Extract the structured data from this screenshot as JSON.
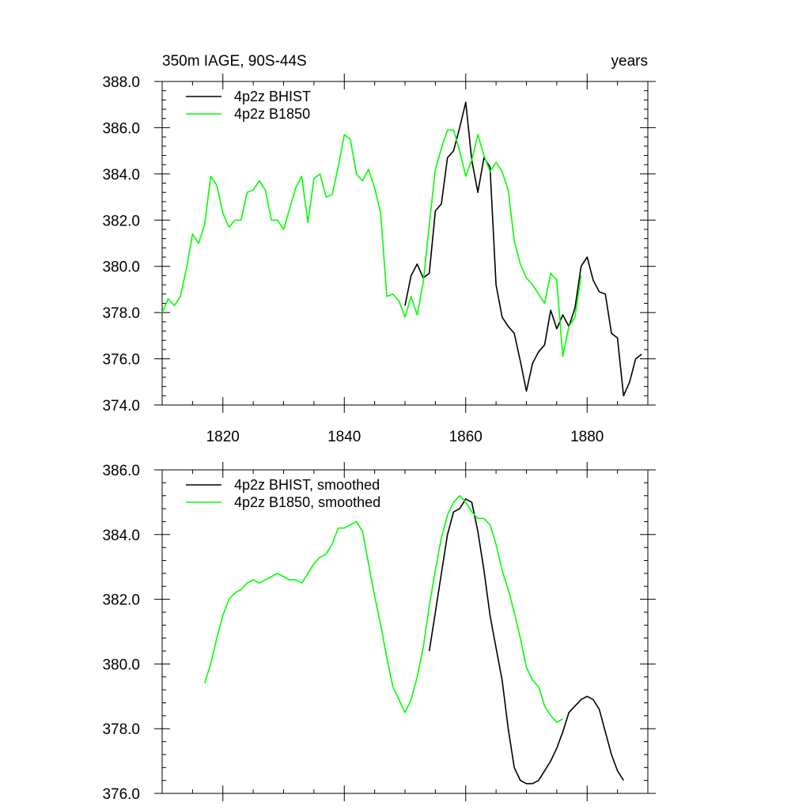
{
  "chart_data": [
    {
      "type": "line",
      "title_left": "350m IAGE, 90S-44S",
      "title_right": "years",
      "xlim": [
        1810,
        1890
      ],
      "ylim": [
        374,
        388
      ],
      "x_ticks": [
        1820,
        1840,
        1860,
        1880
      ],
      "x_tick_labels": [
        "1820",
        "1840",
        "1860",
        "1880"
      ],
      "y_ticks": [
        374,
        376,
        378,
        380,
        382,
        384,
        386,
        388
      ],
      "y_tick_labels": [
        "374.0",
        "376.0",
        "378.0",
        "380.0",
        "382.0",
        "384.0",
        "386.0",
        "388.0"
      ],
      "legend_position": "top-left",
      "series": [
        {
          "name": "4p2z BHIST",
          "color": "#000000",
          "x": [
            1850,
            1851,
            1852,
            1853,
            1854,
            1855,
            1856,
            1857,
            1858,
            1859,
            1860,
            1861,
            1862,
            1863,
            1864,
            1865,
            1866,
            1867,
            1868,
            1869,
            1870,
            1871,
            1872,
            1873,
            1874,
            1875,
            1876,
            1877,
            1878,
            1879,
            1880,
            1881,
            1882,
            1883,
            1884,
            1885,
            1886,
            1887,
            1888,
            1889
          ],
          "y": [
            378.3,
            379.6,
            380.1,
            379.5,
            379.7,
            382.4,
            382.7,
            384.7,
            385.0,
            386.0,
            387.1,
            384.6,
            383.2,
            384.7,
            384.3,
            379.2,
            377.8,
            377.4,
            377.1,
            375.9,
            374.6,
            375.8,
            376.3,
            376.6,
            378.1,
            377.3,
            377.9,
            377.4,
            378.2,
            380.0,
            380.4,
            379.4,
            378.9,
            378.8,
            377.1,
            376.9,
            374.4,
            375.0,
            376.0,
            376.2
          ]
        },
        {
          "name": "4p2z B1850",
          "color": "#00ff00",
          "x": [
            1810,
            1811,
            1812,
            1813,
            1814,
            1815,
            1816,
            1817,
            1818,
            1819,
            1820,
            1821,
            1822,
            1823,
            1824,
            1825,
            1826,
            1827,
            1828,
            1829,
            1830,
            1831,
            1832,
            1833,
            1834,
            1835,
            1836,
            1837,
            1838,
            1839,
            1840,
            1841,
            1842,
            1843,
            1844,
            1845,
            1846,
            1847,
            1848,
            1849,
            1850,
            1851,
            1852,
            1853,
            1854,
            1855,
            1856,
            1857,
            1858,
            1859,
            1860,
            1861,
            1862,
            1863,
            1864,
            1865,
            1866,
            1867,
            1868,
            1869,
            1870,
            1871,
            1872,
            1873,
            1874,
            1875,
            1876,
            1877,
            1878,
            1879
          ],
          "y": [
            378.0,
            378.6,
            378.3,
            378.7,
            379.9,
            381.4,
            381.0,
            381.8,
            383.9,
            383.5,
            382.3,
            381.7,
            382.0,
            382.0,
            383.2,
            383.3,
            383.7,
            383.3,
            382.0,
            382.0,
            381.6,
            382.5,
            383.4,
            383.9,
            381.9,
            383.8,
            384.0,
            383.0,
            383.1,
            384.3,
            385.7,
            385.5,
            384.0,
            383.7,
            384.2,
            383.4,
            382.3,
            378.7,
            378.8,
            378.5,
            377.8,
            378.7,
            377.9,
            379.3,
            381.8,
            384.2,
            385.1,
            385.9,
            385.9,
            385.0,
            383.9,
            384.6,
            385.7,
            384.8,
            384.1,
            384.5,
            384.1,
            383.3,
            381.1,
            380.1,
            379.5,
            379.2,
            378.8,
            378.4,
            379.7,
            379.4,
            376.1,
            377.4,
            377.8,
            379.6
          ]
        }
      ]
    },
    {
      "type": "line",
      "xlim": [
        1810,
        1890
      ],
      "ylim": [
        376,
        386
      ],
      "x_ticks": [
        1820,
        1840,
        1860,
        1880
      ],
      "y_ticks": [
        376,
        378,
        380,
        382,
        384,
        386
      ],
      "y_tick_labels": [
        "376.0",
        "378.0",
        "380.0",
        "382.0",
        "384.0",
        "386.0"
      ],
      "legend_position": "top-left",
      "series": [
        {
          "name": "4p2z BHIST, smoothed",
          "color": "#000000",
          "x": [
            1854,
            1855,
            1856,
            1857,
            1858,
            1859,
            1860,
            1861,
            1862,
            1863,
            1864,
            1865,
            1866,
            1867,
            1868,
            1869,
            1870,
            1871,
            1872,
            1873,
            1874,
            1875,
            1876,
            1877,
            1878,
            1879,
            1880,
            1881,
            1882,
            1883,
            1884,
            1885,
            1886
          ],
          "y": [
            380.4,
            381.6,
            382.8,
            384.0,
            384.7,
            384.8,
            385.1,
            385.0,
            384.1,
            382.9,
            381.5,
            380.5,
            379.5,
            378.0,
            376.8,
            376.4,
            376.3,
            376.3,
            376.4,
            376.7,
            377.0,
            377.4,
            377.9,
            378.5,
            378.7,
            378.9,
            379.0,
            378.9,
            378.6,
            377.9,
            377.2,
            376.7,
            376.4
          ]
        },
        {
          "name": "4p2z B1850, smoothed",
          "color": "#00ff00",
          "x": [
            1817,
            1818,
            1819,
            1820,
            1821,
            1822,
            1823,
            1824,
            1825,
            1826,
            1827,
            1828,
            1829,
            1830,
            1831,
            1832,
            1833,
            1834,
            1835,
            1836,
            1837,
            1838,
            1839,
            1840,
            1841,
            1842,
            1843,
            1844,
            1845,
            1846,
            1847,
            1848,
            1849,
            1850,
            1851,
            1852,
            1853,
            1854,
            1855,
            1856,
            1857,
            1858,
            1859,
            1860,
            1861,
            1862,
            1863,
            1864,
            1865,
            1866,
            1867,
            1868,
            1869,
            1870,
            1871,
            1872,
            1873,
            1874,
            1875,
            1876
          ],
          "y": [
            379.4,
            380.0,
            380.8,
            381.5,
            382.0,
            382.2,
            382.3,
            382.5,
            382.6,
            382.5,
            382.6,
            382.7,
            382.8,
            382.7,
            382.6,
            382.6,
            382.5,
            382.8,
            383.1,
            383.3,
            383.4,
            383.7,
            384.2,
            384.2,
            384.3,
            384.4,
            384.1,
            383.1,
            382.1,
            381.2,
            380.2,
            379.3,
            378.9,
            378.5,
            378.9,
            379.6,
            380.5,
            381.8,
            382.9,
            383.9,
            384.6,
            385.0,
            385.2,
            385.0,
            384.7,
            384.5,
            384.5,
            384.3,
            383.7,
            382.9,
            382.3,
            381.6,
            380.8,
            379.9,
            379.5,
            379.3,
            378.7,
            378.4,
            378.2,
            378.3
          ]
        }
      ]
    }
  ]
}
